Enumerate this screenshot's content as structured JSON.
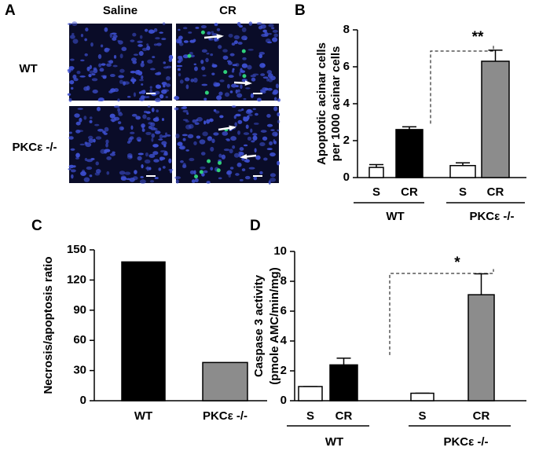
{
  "micrograph": {
    "panel_label": "A",
    "columns": [
      "Saline",
      "CR"
    ],
    "rows": [
      "WT",
      "PKCε -/-"
    ]
  },
  "chart_data": [
    {
      "type": "bar",
      "panel_label": "B",
      "y_label": [
        "Apoptotic acinar cells",
        "per 1000 acinar cells"
      ],
      "categories": [
        "S",
        "CR",
        "S",
        "CR"
      ],
      "groups": [
        "WT",
        "PKCε -/-"
      ],
      "values": [
        0.55,
        2.6,
        0.65,
        6.3
      ],
      "errors": [
        0.15,
        0.15,
        0.15,
        0.6
      ],
      "colors": [
        "#ffffff",
        "#000000",
        "#ffffff",
        "#8c8c8c"
      ],
      "ylim": [
        0,
        8
      ],
      "yticks": [
        0,
        2,
        4,
        6,
        8
      ],
      "annotation": "**"
    },
    {
      "type": "bar",
      "panel_label": "C",
      "y_label": [
        "Necrosis/apoptosis ratio"
      ],
      "categories": [
        "WT",
        "PKCε -/-"
      ],
      "values": [
        138,
        38
      ],
      "colors": [
        "#000000",
        "#8c8c8c"
      ],
      "ylim": [
        0,
        150
      ],
      "yticks": [
        0,
        30,
        60,
        90,
        120,
        150
      ]
    },
    {
      "type": "bar",
      "panel_label": "D",
      "y_label": [
        "Caspase 3 activity",
        "(pmole AMC/min/mg)"
      ],
      "categories": [
        "S",
        "CR",
        "S",
        "CR"
      ],
      "groups": [
        "WT",
        "PKCε -/-"
      ],
      "values": [
        0.95,
        2.4,
        0.5,
        7.1
      ],
      "errors": [
        0,
        0.45,
        0,
        1.4
      ],
      "colors": [
        "#ffffff",
        "#000000",
        "#ffffff",
        "#8c8c8c"
      ],
      "ylim": [
        0,
        10
      ],
      "yticks": [
        0,
        2,
        4,
        6,
        8,
        10
      ],
      "annotation": "*"
    }
  ]
}
